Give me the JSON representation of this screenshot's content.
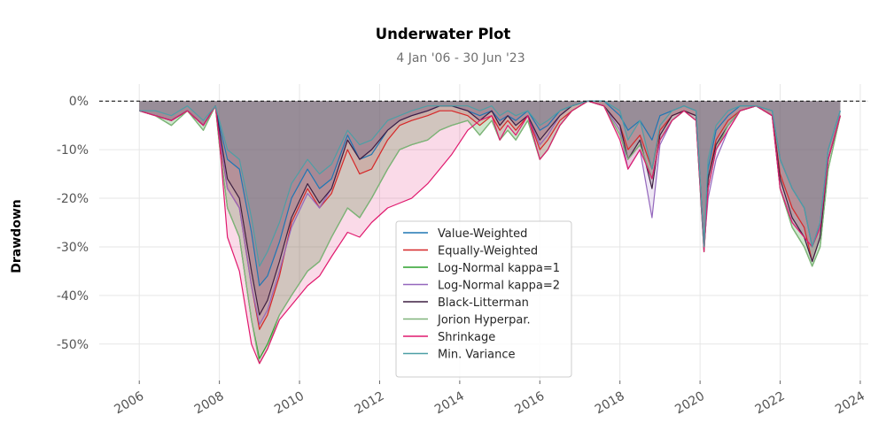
{
  "chart_data": {
    "type": "area",
    "title": "Underwater Plot",
    "subtitle": "4 Jan '06 - 30 Jun '23",
    "xlabel": "",
    "ylabel": "Drawdown",
    "xlim": [
      2005.0,
      2024.2
    ],
    "ylim": [
      -57.5,
      3.5
    ],
    "x_ticks": [
      "2006",
      "2008",
      "2010",
      "2012",
      "2014",
      "2016",
      "2018",
      "2020",
      "2022",
      "2024"
    ],
    "y_ticks": [
      "0%",
      "-10%",
      "-20%",
      "-30%",
      "-40%",
      "-50%"
    ],
    "grid": true,
    "legend_position": "lower-center",
    "x": [
      2006.0,
      2006.4,
      2006.8,
      2007.2,
      2007.6,
      2007.9,
      2008.0,
      2008.2,
      2008.5,
      2008.8,
      2009.0,
      2009.2,
      2009.5,
      2009.8,
      2010.2,
      2010.5,
      2010.8,
      2011.2,
      2011.5,
      2011.8,
      2012.2,
      2012.5,
      2012.8,
      2013.2,
      2013.5,
      2013.8,
      2014.2,
      2014.5,
      2014.8,
      2015.0,
      2015.2,
      2015.4,
      2015.7,
      2016.0,
      2016.2,
      2016.5,
      2016.8,
      2017.2,
      2017.6,
      2018.0,
      2018.2,
      2018.5,
      2018.8,
      2019.0,
      2019.3,
      2019.6,
      2019.9,
      2020.1,
      2020.2,
      2020.4,
      2020.7,
      2021.0,
      2021.4,
      2021.8,
      2022.0,
      2022.3,
      2022.6,
      2022.8,
      2023.0,
      2023.2,
      2023.5
    ],
    "series": [
      {
        "name": "Value-Weighted",
        "color": "#1f77b4",
        "values": [
          -2,
          -3,
          -4,
          -2,
          -5,
          -1,
          -5,
          -12,
          -14,
          -27,
          -38,
          -36,
          -29,
          -20,
          -14,
          -18,
          -16,
          -7,
          -12,
          -11,
          -6,
          -4,
          -3,
          -2,
          -1,
          -1,
          -2,
          -3,
          -2,
          -4,
          -3,
          -4,
          -2,
          -6,
          -5,
          -2,
          -1,
          0,
          0,
          -3,
          -6,
          -4,
          -8,
          -3,
          -2,
          -1,
          -2,
          -30,
          -14,
          -6,
          -3,
          -1,
          -1,
          -2,
          -12,
          -18,
          -22,
          -30,
          -25,
          -10,
          -2
        ]
      },
      {
        "name": "Equally-Weighted",
        "color": "#d62728",
        "values": [
          -2,
          -3,
          -4,
          -2,
          -5,
          -1,
          -8,
          -18,
          -22,
          -38,
          -47,
          -44,
          -36,
          -25,
          -18,
          -22,
          -19,
          -10,
          -15,
          -14,
          -8,
          -5,
          -4,
          -3,
          -2,
          -2,
          -3,
          -5,
          -3,
          -6,
          -4,
          -6,
          -3,
          -10,
          -8,
          -4,
          -2,
          0,
          -1,
          -5,
          -10,
          -7,
          -14,
          -6,
          -3,
          -2,
          -3,
          -30,
          -16,
          -8,
          -4,
          -2,
          -1,
          -3,
          -15,
          -22,
          -26,
          -33,
          -28,
          -12,
          -3
        ]
      },
      {
        "name": "Log-Normal kappa=1",
        "color": "#2ca02c",
        "values": [
          -2,
          -3,
          -5,
          -2,
          -6,
          -1,
          -9,
          -22,
          -28,
          -45,
          -53,
          -50,
          -44,
          -40,
          -35,
          -33,
          -28,
          -22,
          -24,
          -20,
          -14,
          -10,
          -9,
          -8,
          -6,
          -5,
          -4,
          -7,
          -4,
          -8,
          -6,
          -8,
          -4,
          -12,
          -10,
          -5,
          -2,
          0,
          -1,
          -7,
          -12,
          -9,
          -16,
          -8,
          -4,
          -2,
          -4,
          -31,
          -18,
          -10,
          -5,
          -2,
          -1,
          -3,
          -18,
          -26,
          -30,
          -34,
          -30,
          -14,
          -3
        ]
      },
      {
        "name": "Log-Normal kappa=2",
        "color": "#9467bd",
        "values": [
          -2,
          -3,
          -4,
          -2,
          -5,
          -1,
          -7,
          -18,
          -22,
          -38,
          -46,
          -43,
          -35,
          -26,
          -19,
          -22,
          -18,
          -8,
          -12,
          -10,
          -6,
          -4,
          -3,
          -2,
          -1,
          -1,
          -2,
          -4,
          -2,
          -5,
          -3,
          -5,
          -3,
          -9,
          -7,
          -3,
          -1,
          0,
          -1,
          -6,
          -14,
          -10,
          -24,
          -9,
          -4,
          -2,
          -4,
          -30,
          -20,
          -12,
          -6,
          -2,
          -1,
          -3,
          -18,
          -25,
          -28,
          -33,
          -28,
          -12,
          -3
        ]
      },
      {
        "name": "Black-Litterman",
        "color": "#3d1f40",
        "values": [
          -2,
          -3,
          -4,
          -2,
          -5,
          -1,
          -6,
          -16,
          -20,
          -35,
          -44,
          -41,
          -33,
          -24,
          -17,
          -21,
          -18,
          -8,
          -12,
          -10,
          -6,
          -4,
          -3,
          -2,
          -1,
          -1,
          -2,
          -4,
          -2,
          -5,
          -3,
          -5,
          -3,
          -8,
          -6,
          -3,
          -1,
          0,
          -1,
          -5,
          -12,
          -8,
          -18,
          -7,
          -3,
          -2,
          -3,
          -30,
          -16,
          -9,
          -5,
          -2,
          -1,
          -3,
          -16,
          -24,
          -28,
          -33,
          -28,
          -12,
          -3
        ]
      },
      {
        "name": "Jorion Hyperpar.",
        "color": "#80b37a",
        "values": [
          -2,
          -3,
          -5,
          -2,
          -6,
          -1,
          -9,
          -22,
          -28,
          -45,
          -54,
          -51,
          -44,
          -40,
          -35,
          -33,
          -28,
          -22,
          -24,
          -20,
          -14,
          -10,
          -9,
          -8,
          -6,
          -5,
          -4,
          -7,
          -4,
          -8,
          -6,
          -8,
          -4,
          -12,
          -10,
          -5,
          -2,
          0,
          -1,
          -7,
          -12,
          -9,
          -16,
          -8,
          -4,
          -2,
          -4,
          -31,
          -18,
          -10,
          -5,
          -2,
          -1,
          -3,
          -18,
          -26,
          -30,
          -34,
          -30,
          -14,
          -3
        ]
      },
      {
        "name": "Shrinkage",
        "color": "#e0196e",
        "values": [
          -2,
          -3,
          -4,
          -2,
          -5,
          -1,
          -8,
          -28,
          -35,
          -50,
          -54,
          -51,
          -45,
          -42,
          -38,
          -36,
          -32,
          -27,
          -28,
          -25,
          -22,
          -21,
          -20,
          -17,
          -14,
          -11,
          -6,
          -4,
          -3,
          -8,
          -5,
          -7,
          -3,
          -12,
          -10,
          -5,
          -2,
          0,
          -1,
          -8,
          -14,
          -10,
          -16,
          -8,
          -4,
          -2,
          -4,
          -31,
          -18,
          -10,
          -6,
          -2,
          -1,
          -3,
          -18,
          -25,
          -28,
          -30,
          -26,
          -12,
          -3
        ]
      },
      {
        "name": "Min. Variance",
        "color": "#4d9fa6",
        "values": [
          -2,
          -2,
          -3,
          -1,
          -4,
          -1,
          -4,
          -10,
          -12,
          -24,
          -34,
          -31,
          -25,
          -17,
          -12,
          -15,
          -13,
          -6,
          -9,
          -8,
          -4,
          -3,
          -2,
          -1,
          -1,
          -1,
          -1,
          -2,
          -1,
          -3,
          -2,
          -3,
          -2,
          -5,
          -4,
          -2,
          -1,
          0,
          0,
          -2,
          -8,
          -4,
          -14,
          -5,
          -2,
          -1,
          -2,
          -30,
          -12,
          -5,
          -2,
          -1,
          -1,
          -2,
          -12,
          -18,
          -22,
          -30,
          -25,
          -10,
          -2
        ]
      }
    ]
  }
}
